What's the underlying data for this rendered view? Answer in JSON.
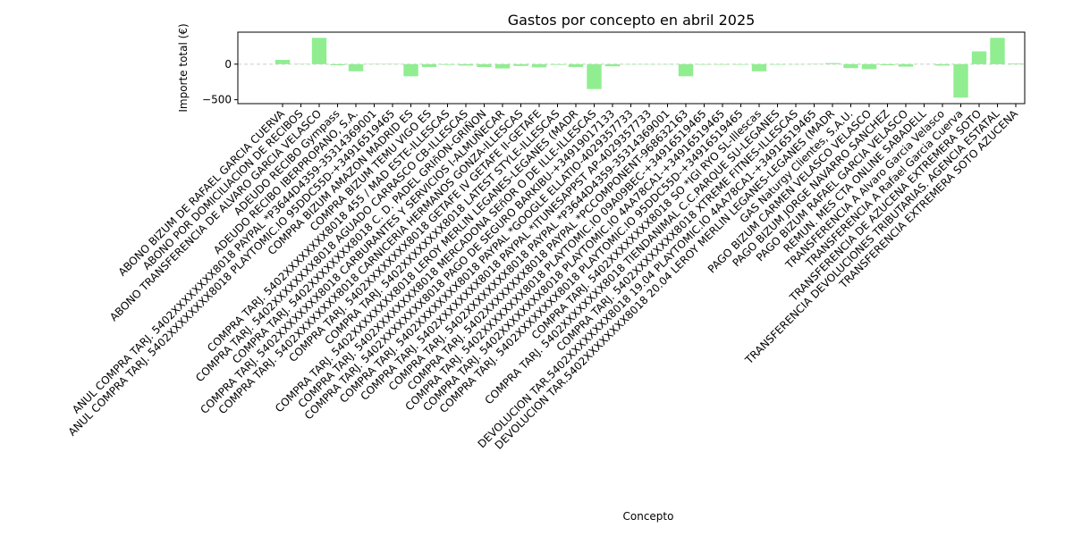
{
  "chart_data": {
    "type": "bar",
    "title": "Gastos por concepto en abril 2025",
    "x_label": "Concepto",
    "y_label": "Importe total (€)",
    "color": "#90ee90",
    "zero_line": true,
    "categories": [
      "ABONO BIZUM DE RAFAEL GARCIA CUERVA",
      "ABONO POR DOMICILIACION DE RECIBOS",
      "ABONO TRANSFERENCIA DE ALVARO GARCIA VELASCO",
      "ADEUDO RECIBO Gympass",
      "ADEUDO RECIBO IBERPROPANO, S.A.",
      "ANUL COMPRA TARJ. 5402XXXXXXXX8018 PAYPAL *P3644D4359-35314369001",
      "ANUL COMPRA TARJ. 5402XXXXXXXX8018 PLAYTOMIC.IO 95DDC55D-+34916519465",
      "COMPRA BIZUM AMAZON MADRID ES",
      "COMPRA BIZUM TEMU VIGO ES",
      "COMPRA TARJ. 5402XXXXXXXX8018 455 / MAD ESTE-ILLESCAS",
      "COMPRA TARJ. 5402XXXXXXXX8018 AGUADO CARRASCO CB-ILLESCAS",
      "COMPRA TARJ. 5402XXXXXXXX8018 C. D. PADEL GRIñON-GRIÑON",
      "COMPRA TARJ. 5402XXXXXXXX8018 CARBURANTES Y SERVICIOS I-ALMUÑECAR",
      "COMPRA TARJ. 5402XXXXXXXX8018 CARNICERIA HERMANOS GONZA-ILLESCAS",
      "COMPRA TARJ. 5402XXXXXXXX8018 GETAFE IV GETAFE II-GETAFE",
      "COMPRA TARJ. 5402XXXXXXXX8018 LATEST STYLE-ILLESCAS",
      "COMPRA TARJ. 5402XXXXXXXX8018 LEROY MERLIN LEGANES-LEGANES (MADR",
      "COMPRA TARJ. 5402XXXXXXXX8018 MERCADONA SEñOR O DE ILLE-ILLESCAS",
      "COMPRA TARJ. 5402XXXXXXXX8018 PAGO DE SEGURO BARKIBU-+34919017133",
      "COMPRA TARJ. 5402XXXXXXXX8018 PAYPAL *GOOGLE ELLATIO-4029357733",
      "COMPRA TARJ. 5402XXXXXXXX8018 PAYPAL *ITUNESAPPST AP-4029357733",
      "COMPRA TARJ. 5402XXXXXXXX8018 PAYPAL *P3644D4359-35314369001",
      "COMPRA TARJ. 5402XXXXXXXX8018 PAYPAL *PCCOMPONENT-968632163",
      "COMPRA TARJ. 5402XXXXXXXX8018 PLAYTOMIC.IO 09A09BEC-+34916519465",
      "COMPRA TARJ. 5402XXXXXXXX8018 PLAYTOMIC.IO 4AA78CA1-+34916519465",
      "COMPRA TARJ. 5402XXXXXXXX8018 PLAYTOMIC.IO 95DDC55D-+34916519465",
      "COMPRA TARJ. 5402XXXXXXXX8018 SO *IGI RYO SL-Illescas",
      "COMPRA TARJ. 5402XXXXXXXX8018 TIENDANIMAL C.C.PARQUE SU-LEGANES",
      "COMPRA TARJ. 5402XXXXXXXX8018 XTREME FITNES-ILLESCAS",
      "DEVOLUCION TAR.5402XXXXXXXX8018 19.04 PLAYTOMIC.IO 4AA78CA1-+34916519465",
      "DEVOLUCION TAR.5402XXXXXXXX8018 20.04 LEROY MERLIN LEGANES-LEGANES (MADR",
      "GAS Naturgy Clientes, S.A.U.",
      "PAGO BIZUM CARMEN VELASCO VELASCO",
      "PAGO BIZUM JORGE NAVARRO SANCHEZ",
      "PAGO BIZUM RAFAEL GARCIA VELASCO",
      "REMUN. MES CTA ONLINE SABADELL",
      "TRANSFERENCIA A Alvaro Garcia Velasco",
      "TRANSFERENCIA A Rafael Garcia Cuerva",
      "TRANSFERENCIA DE AZUCENA EXTREMERA SOTO",
      "TRANSFERENCIA DEVOLUCIONES TRIBUTARIAS. AGENCIA ESTATAL",
      "TRANSFERENCIA EXTREMERA SOTO AZUCENA"
    ],
    "values": [
      60,
      5,
      370,
      -15,
      -100,
      5,
      5,
      -170,
      -40,
      -10,
      -20,
      -40,
      -60,
      -25,
      -45,
      -10,
      -40,
      -350,
      -30,
      -5,
      -5,
      -5,
      -170,
      -8,
      -8,
      -8,
      -100,
      -8,
      -5,
      5,
      15,
      -55,
      -70,
      -15,
      -35,
      1,
      -20,
      -470,
      180,
      370,
      10
    ],
    "ylim": [
      -555,
      450
    ],
    "yticks": [
      {
        "value": -500,
        "label": "−500"
      },
      0
    ]
  }
}
